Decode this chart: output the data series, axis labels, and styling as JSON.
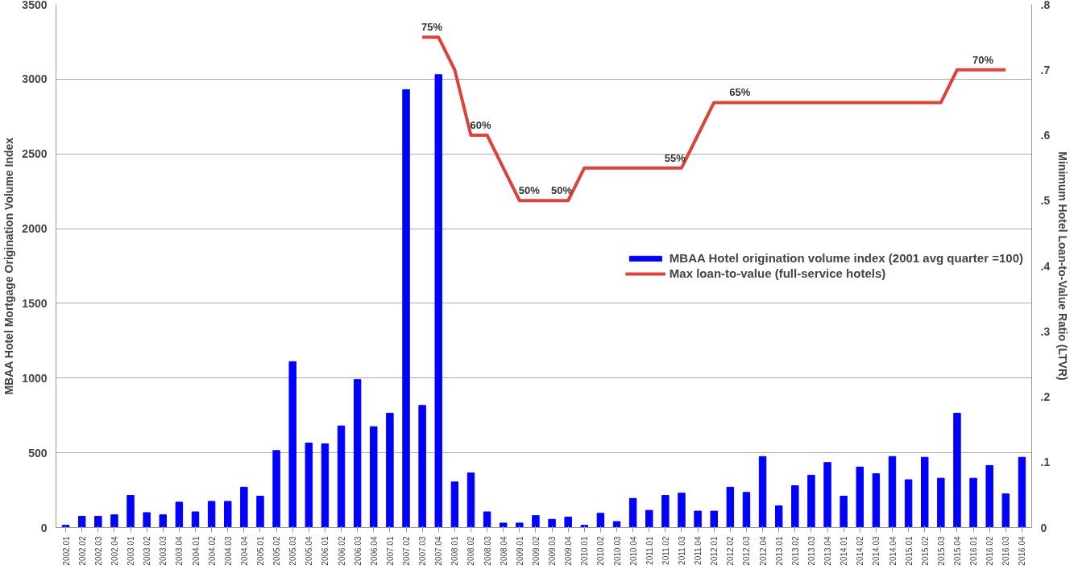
{
  "chart_data": {
    "type": "bar",
    "xlabel": null,
    "ylabel": "MBAA Hotel Mortgage Origination Volume Index",
    "y2label": "Minimum Hotel Loan-to-Value Ratio (LTVR)",
    "categories": [
      "2002.01",
      "2002.02",
      "2002.03",
      "2002.04",
      "2003.01",
      "2003.02",
      "2003.03",
      "2003.04",
      "2004.01",
      "2004.02",
      "2004.03",
      "2004.04",
      "2005.01",
      "2005.02",
      "2005.03",
      "2005.04",
      "2006.01",
      "2006.02",
      "2006.03",
      "2006.04",
      "2007.01",
      "2007.02",
      "2007.03",
      "2007.04",
      "2008.01",
      "2008.02",
      "2008.03",
      "2008.04",
      "2009.01",
      "2009.02",
      "2009.03",
      "2009.04",
      "2010.01",
      "2010.02",
      "2010.03",
      "2010.04",
      "2011.01",
      "2011.02",
      "2011.03",
      "2011.04",
      "2012.01",
      "2012.02",
      "2012.03",
      "2012.04",
      "2013.01",
      "2013.02",
      "2013.03",
      "2013.04",
      "2014.01",
      "2014.02",
      "2014.03",
      "2014.04",
      "2015.01",
      "2015.02",
      "2015.03",
      "2015.04",
      "2016.01",
      "2016.02",
      "2016.03",
      "2016.04"
    ],
    "series": [
      {
        "name": "MBAA Hotel origination volume index (2001 avg quarter =100)",
        "color": "#0000ff",
        "values": [
          15,
          75,
          75,
          85,
          215,
          100,
          85,
          170,
          105,
          175,
          175,
          270,
          210,
          515,
          1110,
          565,
          560,
          680,
          990,
          675,
          765,
          2930,
          817,
          3030,
          305,
          365,
          105,
          30,
          30,
          80,
          55,
          70,
          15,
          95,
          40,
          195,
          115,
          215,
          230,
          110,
          110,
          270,
          235,
          475,
          145,
          280,
          350,
          435,
          210,
          405,
          360,
          475,
          320,
          470,
          330,
          765,
          330,
          415,
          225,
          470
        ]
      },
      {
        "name": "Max loan-to-value (full-service hotels)",
        "type": "line",
        "axis": "y2",
        "color": "#d9443c",
        "values": [
          null,
          null,
          null,
          null,
          null,
          null,
          null,
          null,
          null,
          null,
          null,
          null,
          null,
          null,
          null,
          null,
          null,
          null,
          null,
          null,
          null,
          null,
          0.75,
          0.75,
          0.7,
          0.6,
          0.6,
          0.55,
          0.5,
          0.5,
          0.5,
          0.5,
          0.55,
          0.55,
          0.55,
          0.55,
          0.55,
          0.55,
          0.55,
          0.6,
          0.65,
          0.65,
          0.65,
          0.65,
          0.65,
          0.65,
          0.65,
          0.65,
          0.65,
          0.65,
          0.65,
          0.65,
          0.65,
          0.65,
          0.65,
          0.7,
          0.7,
          0.7,
          0.7,
          null
        ],
        "value_labels": [
          null,
          null,
          null,
          null,
          null,
          null,
          null,
          null,
          null,
          null,
          null,
          null,
          null,
          null,
          null,
          null,
          null,
          null,
          null,
          null,
          null,
          null,
          "75%",
          null,
          null,
          "60%",
          null,
          null,
          "50%",
          null,
          "50%",
          null,
          null,
          null,
          null,
          null,
          null,
          "55%",
          null,
          null,
          null,
          "65%",
          null,
          null,
          null,
          null,
          null,
          null,
          null,
          null,
          null,
          null,
          null,
          null,
          null,
          null,
          "70%",
          null,
          null,
          null
        ]
      }
    ],
    "ylim": [
      0,
      3500
    ],
    "yticks": [
      0,
      500,
      1000,
      1500,
      2000,
      2500,
      3000,
      3500
    ],
    "y2lim": [
      0,
      0.8
    ],
    "y2ticks": [
      {
        "value": 0,
        "label": "0"
      },
      {
        "value": 0.1,
        "label": ".1"
      },
      {
        "value": 0.2,
        "label": ".2"
      },
      {
        "value": 0.3,
        "label": ".3"
      },
      {
        "value": 0.4,
        "label": ".4"
      },
      {
        "value": 0.5,
        "label": ".5"
      },
      {
        "value": 0.6,
        "label": ".6"
      },
      {
        "value": 0.7,
        "label": ".7"
      },
      {
        "value": 0.8,
        "label": ".8"
      }
    ],
    "grid": "y",
    "legend": "right",
    "line_style": "solid",
    "marker": "none"
  }
}
